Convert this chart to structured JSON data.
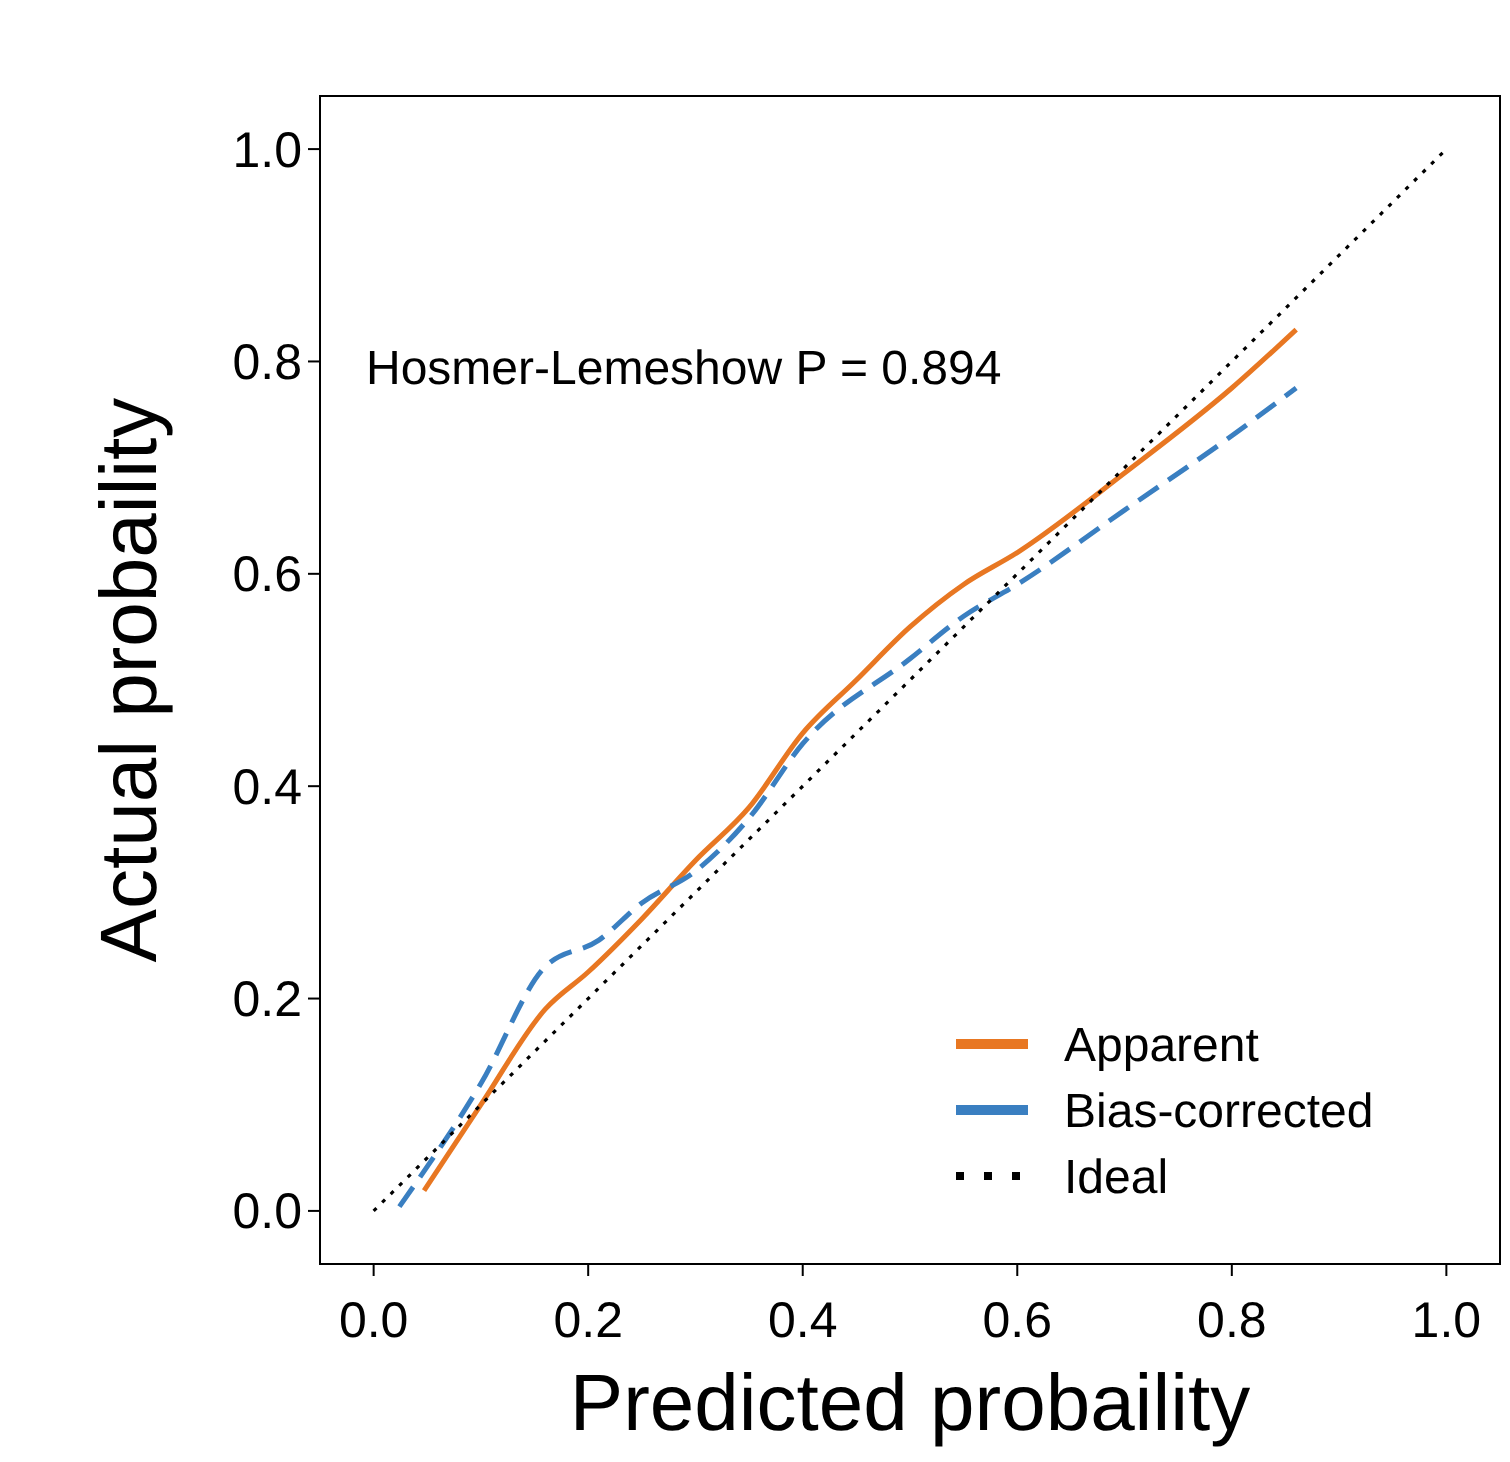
{
  "chart_data": {
    "type": "line",
    "xlabel": "Predicted probaility",
    "ylabel": "Actual probaility",
    "xlim": [
      -0.05,
      1.05
    ],
    "ylim": [
      -0.05,
      1.05
    ],
    "xticks": [
      {
        "value": 0,
        "label": "0.0"
      },
      0.2,
      0.4,
      0.6,
      0.8,
      {
        "value": 1,
        "label": "1.0"
      }
    ],
    "yticks": [
      {
        "value": 0,
        "label": "0.0"
      },
      0.2,
      0.4,
      0.6,
      0.8,
      {
        "value": 1,
        "label": "1.0"
      }
    ],
    "grid": false,
    "legend": "bottom right",
    "annotations": [
      "Hosmer-Lemeshow P = 0.894"
    ],
    "series": [
      {
        "name": "Apparent",
        "color": "#e87722",
        "line_style": "solid",
        "x": [
          0.047,
          0.1,
          0.16,
          0.2,
          0.25,
          0.3,
          0.35,
          0.4,
          0.45,
          0.5,
          0.55,
          0.6,
          0.7,
          0.8,
          0.86
        ],
        "values": [
          0.019,
          0.1,
          0.19,
          0.225,
          0.275,
          0.33,
          0.38,
          0.45,
          0.5,
          0.55,
          0.59,
          0.62,
          0.695,
          0.775,
          0.83
        ]
      },
      {
        "name": "Bias-corrected",
        "color": "#3a7fc1",
        "line_style": "dashed",
        "x": [
          0.024,
          0.1,
          0.16,
          0.21,
          0.25,
          0.3,
          0.35,
          0.4,
          0.5,
          0.55,
          0.6,
          0.7,
          0.8,
          0.86
        ],
        "values": [
          0.004,
          0.12,
          0.23,
          0.255,
          0.29,
          0.32,
          0.37,
          0.44,
          0.52,
          0.56,
          0.59,
          0.66,
          0.73,
          0.775
        ]
      },
      {
        "name": "Ideal",
        "color": "#000000",
        "line_style": "dotted",
        "x": [
          0,
          1
        ],
        "values": [
          0,
          1
        ]
      }
    ]
  }
}
